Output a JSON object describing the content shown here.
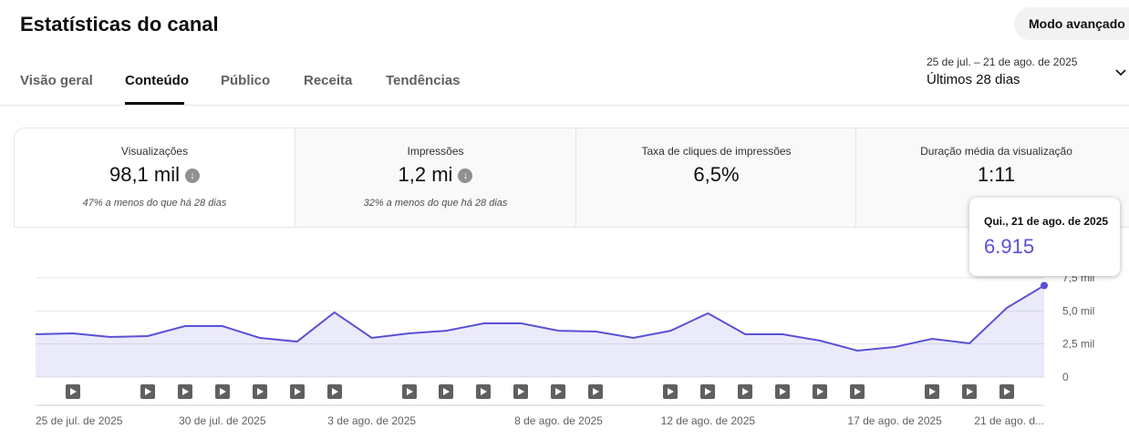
{
  "header": {
    "title": "Estatísticas do canal",
    "button": "Modo avançado"
  },
  "tabs": [
    "Visão geral",
    "Conteúdo",
    "Público",
    "Receita",
    "Tendências"
  ],
  "date_range": {
    "range": "25 de jul. – 21 de ago. de 2025",
    "period": "Últimos 28 dias"
  },
  "metrics": [
    {
      "label": "Visualizações",
      "value": "98,1 mil",
      "change": "47% a menos do que há 28 dias"
    },
    {
      "label": "Impressões",
      "value": "1,2 mi",
      "change": "32% a menos do que há 28 dias"
    },
    {
      "label": "Taxa de cliques de impressões",
      "value": "6,5%"
    },
    {
      "label": "Duração média da visualização",
      "value": "1:11"
    }
  ],
  "chart_data": {
    "type": "line",
    "color": "#5b50d6",
    "categories": [
      "25 de jul. de 2025",
      null,
      null,
      null,
      null,
      "30 de jul. de 2025",
      null,
      null,
      null,
      "3 de ago. de 2025",
      null,
      null,
      null,
      null,
      "8 de ago. de 2025",
      null,
      null,
      null,
      "12 de ago. de 2025",
      null,
      null,
      null,
      null,
      "17 de ago. de 2025",
      null,
      null,
      null,
      "21 de ago. d..."
    ],
    "values": [
      3230,
      3300,
      3030,
      3100,
      3850,
      3850,
      2960,
      2680,
      4890,
      2960,
      3300,
      3500,
      4060,
      4060,
      3500,
      3440,
      2960,
      3500,
      4820,
      3230,
      3230,
      2750,
      2000,
      2270,
      2890,
      2550,
      5230,
      6915
    ],
    "value_labels": [
      null,
      null,
      null,
      null,
      null,
      null,
      null,
      null,
      null,
      null,
      null,
      null,
      null,
      null,
      null,
      null,
      null,
      null,
      null,
      null,
      null,
      null,
      null,
      null,
      null,
      null,
      null,
      "6.915"
    ],
    "tooltip_title": "Qui., 21 de ago. de 2025",
    "ylim": [
      0,
      7500
    ],
    "yticks": [
      0,
      {
        "value": 2500,
        "label": "2,5 mil"
      },
      {
        "value": 5000,
        "label": "5,0 mil"
      },
      {
        "value": 7500,
        "label": "7,5 mil"
      }
    ],
    "grid": true
  }
}
